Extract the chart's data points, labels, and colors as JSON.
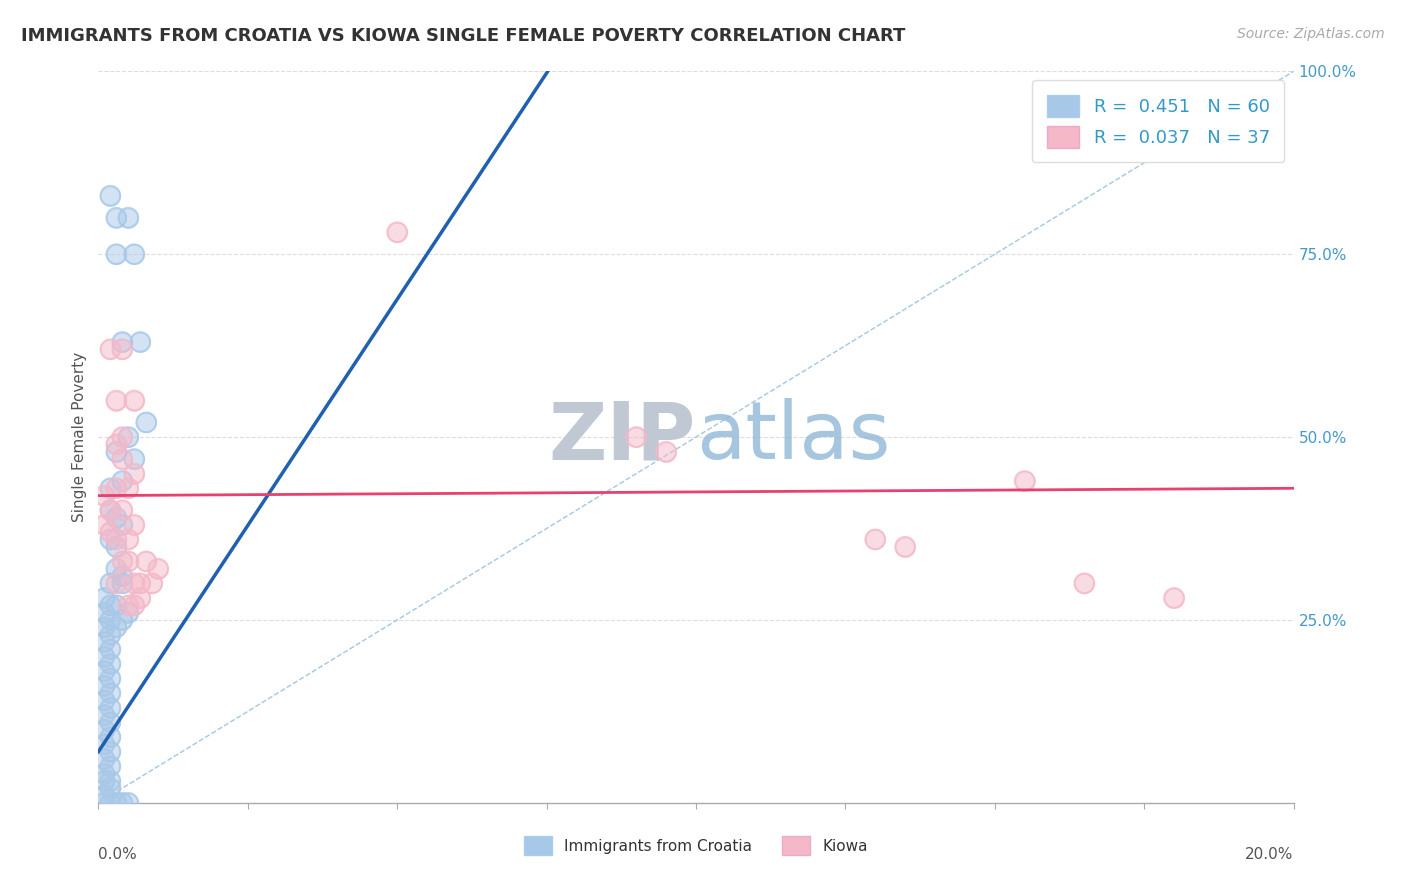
{
  "title": "IMMIGRANTS FROM CROATIA VS KIOWA SINGLE FEMALE POVERTY CORRELATION CHART",
  "source": "Source: ZipAtlas.com",
  "ylabel": "Single Female Poverty",
  "legend_label1": "Immigrants from Croatia",
  "legend_label2": "Kiowa",
  "R1": 0.451,
  "N1": 60,
  "R2": 0.037,
  "N2": 37,
  "blue_color": "#a8c8e8",
  "pink_color": "#f4b8c8",
  "blue_line_color": "#2060b0",
  "pink_line_color": "#e84070",
  "blue_dots": [
    [
      0.002,
      0.83
    ],
    [
      0.003,
      0.8
    ],
    [
      0.005,
      0.8
    ],
    [
      0.003,
      0.75
    ],
    [
      0.006,
      0.75
    ],
    [
      0.004,
      0.63
    ],
    [
      0.007,
      0.63
    ],
    [
      0.005,
      0.5
    ],
    [
      0.008,
      0.52
    ],
    [
      0.003,
      0.48
    ],
    [
      0.006,
      0.47
    ],
    [
      0.002,
      0.43
    ],
    [
      0.004,
      0.44
    ],
    [
      0.002,
      0.4
    ],
    [
      0.003,
      0.39
    ],
    [
      0.004,
      0.38
    ],
    [
      0.002,
      0.36
    ],
    [
      0.003,
      0.35
    ],
    [
      0.003,
      0.32
    ],
    [
      0.004,
      0.31
    ],
    [
      0.002,
      0.3
    ],
    [
      0.004,
      0.3
    ],
    [
      0.001,
      0.28
    ],
    [
      0.002,
      0.27
    ],
    [
      0.001,
      0.26
    ],
    [
      0.002,
      0.25
    ],
    [
      0.001,
      0.24
    ],
    [
      0.002,
      0.23
    ],
    [
      0.001,
      0.22
    ],
    [
      0.002,
      0.21
    ],
    [
      0.001,
      0.2
    ],
    [
      0.002,
      0.19
    ],
    [
      0.001,
      0.18
    ],
    [
      0.002,
      0.17
    ],
    [
      0.001,
      0.16
    ],
    [
      0.002,
      0.15
    ],
    [
      0.001,
      0.14
    ],
    [
      0.002,
      0.13
    ],
    [
      0.001,
      0.12
    ],
    [
      0.002,
      0.11
    ],
    [
      0.001,
      0.1
    ],
    [
      0.002,
      0.09
    ],
    [
      0.001,
      0.08
    ],
    [
      0.002,
      0.07
    ],
    [
      0.001,
      0.06
    ],
    [
      0.002,
      0.05
    ],
    [
      0.001,
      0.04
    ],
    [
      0.002,
      0.03
    ],
    [
      0.001,
      0.03
    ],
    [
      0.002,
      0.02
    ],
    [
      0.001,
      0.01
    ],
    [
      0.001,
      0.0
    ],
    [
      0.002,
      0.0
    ],
    [
      0.003,
      0.0
    ],
    [
      0.004,
      0.0
    ],
    [
      0.005,
      0.0
    ],
    [
      0.003,
      0.27
    ],
    [
      0.005,
      0.26
    ],
    [
      0.004,
      0.25
    ],
    [
      0.003,
      0.24
    ]
  ],
  "pink_dots": [
    [
      0.002,
      0.62
    ],
    [
      0.004,
      0.62
    ],
    [
      0.003,
      0.55
    ],
    [
      0.006,
      0.55
    ],
    [
      0.004,
      0.5
    ],
    [
      0.003,
      0.49
    ],
    [
      0.004,
      0.47
    ],
    [
      0.006,
      0.45
    ],
    [
      0.003,
      0.43
    ],
    [
      0.005,
      0.43
    ],
    [
      0.004,
      0.4
    ],
    [
      0.006,
      0.38
    ],
    [
      0.001,
      0.42
    ],
    [
      0.002,
      0.4
    ],
    [
      0.003,
      0.36
    ],
    [
      0.005,
      0.36
    ],
    [
      0.004,
      0.33
    ],
    [
      0.005,
      0.33
    ],
    [
      0.006,
      0.3
    ],
    [
      0.003,
      0.3
    ],
    [
      0.007,
      0.28
    ],
    [
      0.005,
      0.27
    ],
    [
      0.05,
      0.78
    ],
    [
      0.09,
      0.5
    ],
    [
      0.095,
      0.48
    ],
    [
      0.13,
      0.36
    ],
    [
      0.135,
      0.35
    ],
    [
      0.155,
      0.44
    ],
    [
      0.165,
      0.3
    ],
    [
      0.18,
      0.28
    ],
    [
      0.002,
      0.37
    ],
    [
      0.001,
      0.38
    ],
    [
      0.008,
      0.33
    ],
    [
      0.01,
      0.32
    ],
    [
      0.007,
      0.3
    ],
    [
      0.009,
      0.3
    ],
    [
      0.006,
      0.27
    ]
  ],
  "xlim": [
    0.0,
    0.2
  ],
  "ylim": [
    0.0,
    1.0
  ],
  "blue_line_x": [
    0.0,
    0.038
  ],
  "blue_line_y": [
    0.07,
    0.54
  ],
  "pink_line_x": [
    0.0,
    0.2
  ],
  "pink_line_y": [
    0.42,
    0.43
  ],
  "diag_line_x": [
    0.0,
    0.2
  ],
  "diag_line_y": [
    0.0,
    1.0
  ],
  "watermark": "ZIPatlas",
  "watermark_color": "#c8d8ea",
  "background_color": "#ffffff",
  "grid_color": "#dddddd"
}
